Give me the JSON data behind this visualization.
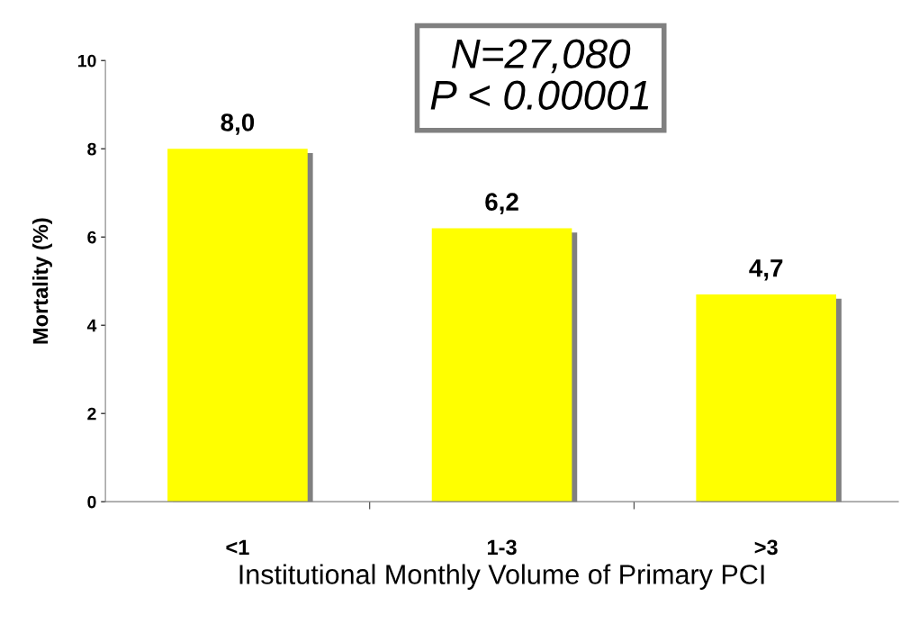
{
  "chart_data": {
    "type": "bar",
    "xlabel": "Institutional Monthly Volume of Primary PCI",
    "ylabel": "Mortality (%)",
    "categories": [
      "<1",
      "1-3",
      ">3"
    ],
    "values": [
      8.0,
      6.2,
      4.7
    ],
    "value_labels": [
      "8,0",
      "6,2",
      "4,7"
    ],
    "color": "#ffff00",
    "ylim": [
      0,
      10
    ],
    "yticks": [
      0,
      2,
      4,
      6,
      8,
      10
    ],
    "grid": false,
    "legend": false,
    "annotations": [
      "N=27,080\nP < 0.00001"
    ]
  }
}
